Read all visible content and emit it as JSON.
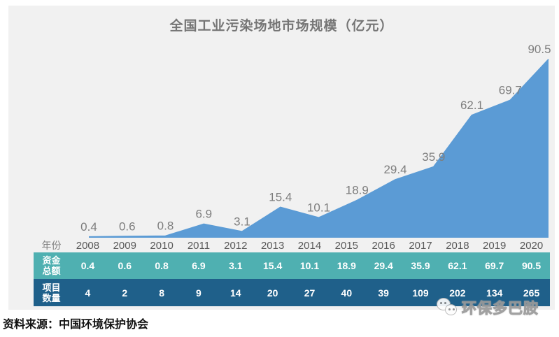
{
  "chart_data": {
    "type": "area",
    "title": "全国工业污染场地市场规模（亿元）",
    "categories": [
      "2008",
      "2009",
      "2010",
      "2011",
      "2012",
      "2013",
      "2014",
      "2015",
      "2016",
      "2017",
      "2018",
      "2019",
      "2020"
    ],
    "series": [
      {
        "name": "资金总额",
        "values": [
          0.4,
          0.6,
          0.8,
          6.9,
          3.1,
          15.4,
          10.1,
          18.9,
          29.4,
          35.9,
          62.1,
          69.7,
          90.5
        ]
      },
      {
        "name": "项目数量",
        "values": [
          4,
          2,
          8,
          9,
          14,
          20,
          27,
          40,
          39,
          109,
          202,
          134,
          265
        ]
      }
    ],
    "ylim": [
      0,
      95
    ],
    "grid": false,
    "legend": "none",
    "data_labels_series": "资金总额",
    "colors": {
      "area_fill": "#5b9bd5",
      "panel_background": "#f1f1f1",
      "funds_row_background": "#4fb0b1",
      "projects_row_background": "#1f608a",
      "title_text": "#757575",
      "data_label_text": "#7e7e7e",
      "year_text": "#595959",
      "table_value_text": "#ffffff"
    }
  },
  "table": {
    "year_label": "年份",
    "funds_label": [
      "资金",
      "总额"
    ],
    "projects_label": [
      "项目",
      "数量"
    ]
  },
  "source": {
    "text": "资料来源：中国环境保护协会"
  },
  "watermark": {
    "text": "环保多巴胺",
    "icon": "chat-bubbles-icon"
  }
}
